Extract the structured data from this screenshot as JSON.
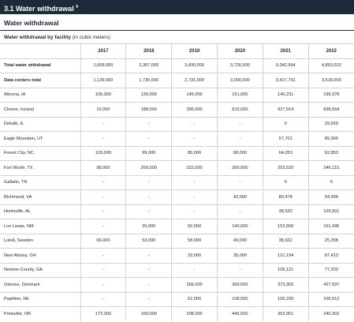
{
  "header": {
    "title": "3.1 Water withdrawal",
    "note_ref": "9"
  },
  "section_title": "Water withdrawal",
  "table_title": {
    "bold": "Water withdrawal by facility",
    "plain": "(in cubic meters)"
  },
  "table": {
    "columns": [
      "2017",
      "2018",
      "2019",
      "2020",
      "2021",
      "2022"
    ],
    "bold_rows": [
      0,
      1
    ],
    "rows": [
      [
        "Total water withdrawal",
        "1,609,000",
        "2,367,000",
        "3,430,000",
        "3,726,000",
        "5,042,564",
        "4,893,023"
      ],
      [
        "Data centers total",
        "1,139,000",
        "1,730,000",
        "2,731,000",
        "3,000,000",
        "3,417,791",
        "3,618,003"
      ],
      [
        "Altoona, IA",
        "106,000",
        "139,000",
        "145,000",
        "151,000",
        "140,231",
        "199,378"
      ],
      [
        "Clonee, Ireland",
        "10,000",
        "188,000",
        "395,000",
        "615,000",
        "927,914",
        "838,654"
      ],
      [
        "Dekalb, IL",
        "-",
        "-",
        "-",
        "-",
        "0",
        "29,659"
      ],
      [
        "Eagle Mountain, UT",
        "-",
        "-",
        "-",
        "-",
        "57,701",
        "89,366"
      ],
      [
        "Forest City, NC",
        "129,000",
        "99,000",
        "85,000",
        "68,000",
        "64,053",
        "62,853"
      ],
      [
        "Fort Worth, TX",
        "98,000",
        "269,000",
        "322,000",
        "300,000",
        "253,520",
        "346,115"
      ],
      [
        "Gallatin, TN",
        "-",
        "-",
        "-",
        "-",
        "0",
        "0"
      ],
      [
        "Richmond, VA",
        "-",
        "-",
        "-",
        "42,000",
        "80,478",
        "54,994"
      ],
      [
        "Huntsville, AL",
        "-",
        "-",
        "-",
        "-",
        "38,520",
        "103,501"
      ],
      [
        "Los Lunas, NM",
        "-",
        "25,000",
        "92,000",
        "140,000",
        "152,666",
        "161,436"
      ],
      [
        "Luleå, Sweden",
        "66,000",
        "53,000",
        "58,000",
        "49,000",
        "38,922",
        "25,358"
      ],
      [
        "New Albany, OH",
        "-",
        "-",
        "33,000",
        "35,000",
        "121,194",
        "87,413"
      ],
      [
        "Newton County, GA",
        "-",
        "-",
        "-",
        "-",
        "105,121",
        "77,203"
      ],
      [
        "Odense, Denmark",
        "-",
        "-",
        "266,000",
        "360,000",
        "373,355",
        "427,937"
      ],
      [
        "Papillion, NE",
        "-",
        "-",
        "62,000",
        "108,000",
        "106,339",
        "100,912"
      ],
      [
        "Prineville, OR",
        "172,000",
        "160,000",
        "208,000",
        "445,000",
        "353,951",
        "240,302"
      ]
    ]
  }
}
